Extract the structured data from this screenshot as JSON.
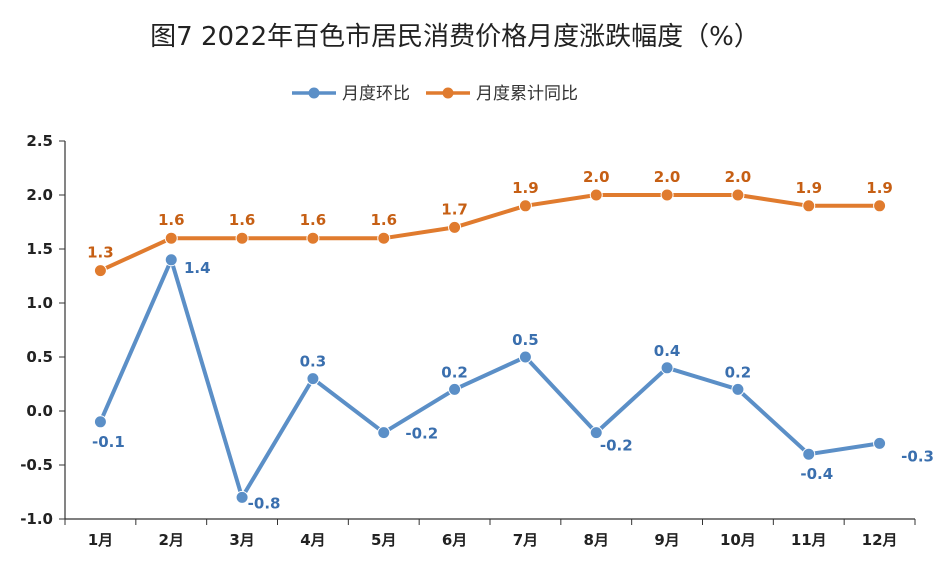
{
  "chart_data": {
    "type": "line",
    "title": "图7 2022年百色市居民消费价格月度涨跌幅度（%）",
    "categories": [
      "1月",
      "2月",
      "3月",
      "4月",
      "5月",
      "6月",
      "7月",
      "8月",
      "9月",
      "10月",
      "11月",
      "12月"
    ],
    "series": [
      {
        "name": "月度环比",
        "color": "#5b8fc7",
        "label_color": "#3a6fae",
        "values": [
          -0.1,
          1.4,
          -0.8,
          0.3,
          -0.2,
          0.2,
          0.5,
          -0.2,
          0.4,
          0.2,
          -0.4,
          -0.3
        ],
        "labels": [
          "-0.1",
          "1.4",
          "-0.8",
          "0.3",
          "-0.2",
          "0.2",
          "0.5",
          "-0.2",
          "0.4",
          "0.2",
          "-0.4",
          "-0.3"
        ]
      },
      {
        "name": "月度累计同比",
        "color": "#e07b2e",
        "label_color": "#c65f14",
        "values": [
          1.3,
          1.6,
          1.6,
          1.6,
          1.6,
          1.7,
          1.9,
          2.0,
          2.0,
          2.0,
          1.9,
          1.9
        ],
        "labels": [
          "1.3",
          "1.6",
          "1.6",
          "1.6",
          "1.6",
          "1.7",
          "1.9",
          "2.0",
          "2.0",
          "2.0",
          "1.9",
          "1.9"
        ]
      }
    ],
    "y_ticks": [
      "2.5",
      "2.0",
      "1.5",
      "1.0",
      "0.5",
      "0.0",
      "-0.5",
      "-1.0"
    ],
    "ylim": [
      -1.0,
      2.5
    ],
    "xlabel": "",
    "ylabel": "",
    "grid": false,
    "legend_position": "top-center"
  }
}
